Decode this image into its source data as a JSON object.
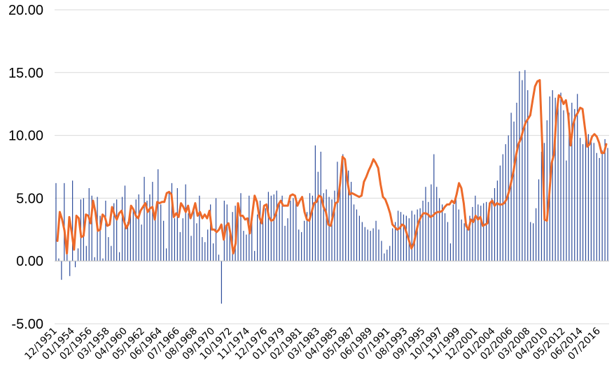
{
  "chart_data": {
    "type": "bar+line",
    "ylim": [
      -5,
      20
    ],
    "yticks": [
      "-5.00",
      "0.00",
      "5.00",
      "10.00",
      "15.00",
      "20.00"
    ],
    "grid": true,
    "legend": "none",
    "x_tick_labels": [
      "12/1951",
      "01/1954",
      "02/1956",
      "03/1958",
      "04/1960",
      "05/1962",
      "06/1964",
      "07/1966",
      "08/1968",
      "09/1970",
      "10/1972",
      "11/1974",
      "12/1976",
      "01/1979",
      "02/1981",
      "03/1983",
      "04/1985",
      "05/1987",
      "06/1989",
      "07/1991",
      "08/1993",
      "09/1995",
      "10/1997",
      "11/1999",
      "12/2001",
      "01/2004",
      "02/2006",
      "03/2008",
      "04/2010",
      "05/2012",
      "06/2014",
      "07/2016"
    ],
    "series": [
      {
        "kind": "bar",
        "color": "#2e4d9b",
        "values": [
          6.2,
          0.2,
          -1.5,
          6.2,
          1.5,
          -1.2,
          6.4,
          -0.5,
          1.0,
          4.9,
          5.0,
          1.2,
          5.8,
          5.2,
          0.3,
          5.1,
          3.6,
          0.2,
          4.8,
          1.9,
          1.2,
          4.6,
          4.9,
          0.7,
          5.1,
          6.0,
          3.1,
          4.4,
          4.0,
          4.9,
          5.3,
          2.9,
          6.7,
          4.8,
          5.3,
          6.3,
          3.8,
          7.3,
          4.5,
          3.2,
          1.0,
          5.5,
          6.2,
          3.4,
          5.8,
          2.3,
          3.4,
          6.1,
          3.8,
          2.0,
          4.2,
          3.0,
          5.2,
          1.9,
          1.5,
          2.5,
          4.5,
          1.4,
          5.0,
          0.5,
          -3.4,
          4.8,
          4.5,
          2.3,
          3.9,
          4.4,
          4.1,
          5.4,
          2.4,
          2.1,
          5.2,
          3.1,
          0.8,
          3.7,
          4.8,
          3.3,
          4.2,
          5.5,
          5.2,
          5.3,
          5.6,
          4.6,
          5.2,
          2.8,
          3.4,
          4.8,
          5.0,
          5.0,
          2.5,
          2.3,
          3.2,
          3.9,
          5.4,
          5.2,
          9.2,
          7.1,
          8.7,
          5.4,
          5.7,
          5.1,
          4.9,
          5.6,
          7.9,
          6.7,
          8.5,
          7.3,
          7.2,
          6.3,
          4.5,
          4.1,
          3.6,
          3.1,
          2.7,
          2.5,
          2.4,
          2.6,
          3.2,
          2.5,
          1.6,
          0.6,
          0.9,
          1.2,
          2.6,
          3.1,
          4.0,
          3.9,
          3.7,
          3.6,
          3.4,
          4.0,
          3.7,
          4.1,
          4.2,
          4.8,
          5.9,
          4.7,
          6.1,
          8.5,
          5.9,
          5.0,
          4.5,
          3.8,
          3.1,
          1.4,
          4.5,
          5.2,
          4.1,
          3.3,
          3.0,
          2.9,
          3.6,
          4.3,
          5.2,
          4.5,
          4.4,
          4.6,
          4.7,
          4.6,
          5.0,
          5.8,
          6.4,
          7.6,
          8.5,
          9.3,
          10.0,
          11.8,
          11.1,
          12.6,
          15.1,
          14.4,
          15.2,
          13.6,
          3.1,
          3.0,
          4.2,
          6.5,
          8.7,
          9.4,
          11.2,
          13.1,
          13.6,
          13.0,
          12.7,
          13.4,
          12.0,
          8.0,
          11.8,
          12.6,
          12.1,
          13.3,
          9.8,
          9.3,
          10.5,
          10.1,
          9.6,
          9.4,
          8.6,
          8.2,
          8.8,
          9.7,
          9.0
        ]
      },
      {
        "kind": "line",
        "color": "#ed6a2a",
        "values": [
          1.6,
          3.9,
          3.3,
          2.4,
          0.6,
          3.5,
          2.3,
          0.9,
          3.6,
          3.4,
          1.9,
          2.0,
          3.7,
          3.6,
          3.0,
          4.8,
          3.9,
          2.4,
          2.5,
          3.7,
          3.5,
          2.8,
          2.9,
          4.3,
          3.7,
          3.3,
          3.8,
          4.0,
          3.2,
          2.6,
          3.0,
          4.4,
          4.1,
          3.6,
          3.4,
          4.0,
          4.3,
          4.6,
          3.9,
          4.2,
          4.3,
          3.3,
          4.7,
          4.6,
          4.7,
          4.7,
          5.4,
          5.5,
          5.3,
          3.5,
          3.8,
          3.5,
          4.6,
          4.3,
          3.9,
          4.4,
          3.4,
          3.9,
          4.6,
          3.6,
          3.9,
          3.4,
          3.7,
          3.4,
          4.0,
          2.5,
          2.5,
          2.3,
          2.5,
          2.9,
          1.7,
          2.8,
          3.0,
          2.0,
          0.6,
          1.4,
          4.6,
          3.6,
          3.6,
          3.3,
          3.4,
          2.2,
          3.7,
          5.2,
          4.7,
          3.5,
          3.0,
          4.4,
          4.5,
          3.5,
          3.2,
          3.3,
          3.8,
          4.5,
          4.8,
          4.4,
          4.4,
          4.4,
          5.2,
          5.3,
          5.2,
          4.4,
          4.8,
          5.1,
          3.9,
          3.3,
          3.2,
          3.9,
          4.6,
          4.7,
          5.2,
          5.1,
          4.3,
          3.9,
          2.9,
          2.8,
          3.6,
          4.6,
          4.7,
          6.2,
          8.3,
          8.1,
          6.4,
          5.3,
          5.4,
          5.3,
          5.2,
          5.1,
          5.2,
          6.3,
          6.7,
          7.2,
          7.6,
          8.1,
          7.8,
          7.4,
          6.1,
          5.1,
          4.9,
          4.4,
          3.8,
          2.9,
          2.7,
          2.5,
          2.6,
          2.9,
          2.8,
          2.2,
          1.6,
          1.0,
          1.4,
          2.3,
          3.1,
          3.5,
          3.8,
          3.8,
          3.7,
          3.5,
          3.6,
          3.8,
          3.9,
          3.9,
          4.0,
          4.3,
          4.5,
          4.5,
          4.8,
          4.6,
          5.3,
          6.2,
          5.8,
          4.6,
          2.8,
          2.5,
          3.3,
          3.1,
          3.6,
          3.3,
          3.5,
          2.8,
          2.9,
          3.0,
          4.6,
          4.8,
          4.4,
          4.6,
          4.5,
          4.5,
          4.6,
          4.9,
          5.5,
          6.3,
          7.2,
          8.4,
          9.3,
          9.7,
          10.4,
          11.0,
          11.3,
          11.6,
          12.8,
          13.9,
          14.3,
          14.4,
          9.5,
          3.3,
          3.2,
          5.3,
          7.8,
          8.5,
          11.6,
          13.2,
          13.0,
          12.5,
          12.8,
          11.6,
          9.2,
          10.8,
          11.5,
          11.8,
          12.2,
          12.1,
          10.6,
          9.1,
          9.3,
          9.9,
          10.1,
          9.9,
          9.4,
          8.6,
          8.6,
          9.3
        ]
      }
    ]
  }
}
